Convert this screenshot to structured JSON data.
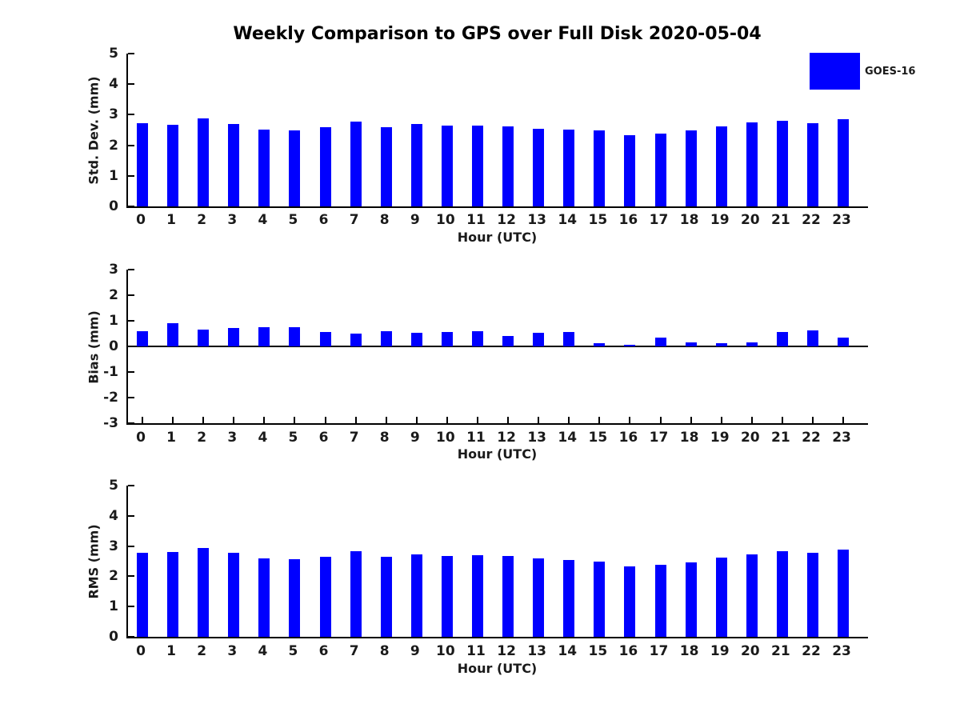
{
  "title": "Weekly Comparison to GPS over Full Disk 2020-05-04",
  "legend": {
    "label": "GOES-16",
    "swatch_color": "#0000ff",
    "position": "top-right"
  },
  "colors": {
    "bar": "#0000ff",
    "axis": "#000000",
    "text": "#1a1a1a",
    "background": "#ffffff"
  },
  "chart_data": [
    {
      "type": "bar",
      "ylabel": "Std. Dev. (mm)",
      "xlabel": "Hour (UTC)",
      "ylim": [
        0,
        5
      ],
      "yticks": [
        0,
        1,
        2,
        3,
        4,
        5
      ],
      "grid": false,
      "categories": [
        "0",
        "1",
        "2",
        "3",
        "4",
        "5",
        "6",
        "7",
        "8",
        "9",
        "10",
        "11",
        "12",
        "13",
        "14",
        "15",
        "16",
        "17",
        "18",
        "19",
        "20",
        "21",
        "22",
        "23"
      ],
      "series": [
        {
          "name": "GOES-16",
          "values": [
            2.72,
            2.67,
            2.88,
            2.7,
            2.52,
            2.48,
            2.6,
            2.78,
            2.58,
            2.7,
            2.65,
            2.64,
            2.62,
            2.55,
            2.52,
            2.48,
            2.33,
            2.37,
            2.48,
            2.62,
            2.75,
            2.8,
            2.72,
            2.86
          ]
        }
      ]
    },
    {
      "type": "bar",
      "ylabel": "Bias (mm)",
      "xlabel": "Hour (UTC)",
      "ylim": [
        -3,
        3
      ],
      "yticks": [
        -3,
        -2,
        -1,
        0,
        1,
        2,
        3
      ],
      "grid": false,
      "categories": [
        "0",
        "1",
        "2",
        "3",
        "4",
        "5",
        "6",
        "7",
        "8",
        "9",
        "10",
        "11",
        "12",
        "13",
        "14",
        "15",
        "16",
        "17",
        "18",
        "19",
        "20",
        "21",
        "22",
        "23"
      ],
      "series": [
        {
          "name": "GOES-16",
          "values": [
            0.58,
            0.9,
            0.65,
            0.73,
            0.76,
            0.76,
            0.56,
            0.5,
            0.58,
            0.52,
            0.56,
            0.6,
            0.42,
            0.52,
            0.55,
            0.14,
            0.05,
            0.34,
            0.15,
            0.13,
            0.15,
            0.55,
            0.64,
            0.33
          ]
        }
      ]
    },
    {
      "type": "bar",
      "ylabel": "RMS (mm)",
      "xlabel": "Hour (UTC)",
      "ylim": [
        0,
        5
      ],
      "yticks": [
        0,
        1,
        2,
        3,
        4,
        5
      ],
      "grid": false,
      "categories": [
        "0",
        "1",
        "2",
        "3",
        "4",
        "5",
        "6",
        "7",
        "8",
        "9",
        "10",
        "11",
        "12",
        "13",
        "14",
        "15",
        "16",
        "17",
        "18",
        "19",
        "20",
        "21",
        "22",
        "23"
      ],
      "series": [
        {
          "name": "GOES-16",
          "values": [
            2.77,
            2.8,
            2.93,
            2.77,
            2.6,
            2.57,
            2.65,
            2.82,
            2.65,
            2.73,
            2.68,
            2.7,
            2.66,
            2.58,
            2.55,
            2.5,
            2.32,
            2.37,
            2.47,
            2.61,
            2.72,
            2.82,
            2.77,
            2.88
          ]
        }
      ]
    }
  ]
}
